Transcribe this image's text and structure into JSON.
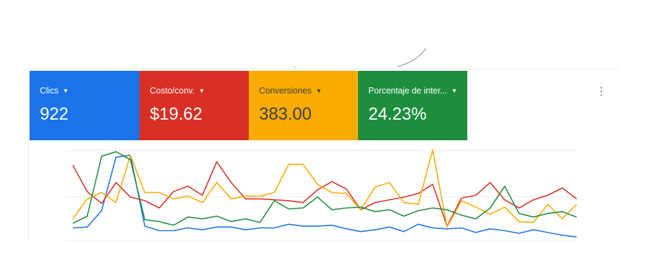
{
  "scorecards": [
    {
      "label": "Clics",
      "value": "922",
      "color": "#1a73e8"
    },
    {
      "label": "Costo/conv.",
      "value": "$19.62",
      "color": "#d93025"
    },
    {
      "label": "Conversiones",
      "value": "383.00",
      "color": "#f9ab00"
    },
    {
      "label": "Porcentaje de inter...",
      "value": "24.23%",
      "color": "#1e8e3e"
    }
  ],
  "icons": {
    "dropdown": "caret-down-icon",
    "more": "more-vert-icon"
  },
  "more_label": "⋮",
  "chart_data": {
    "type": "line",
    "x": [
      1,
      2,
      3,
      4,
      5,
      6,
      7,
      8,
      9,
      10,
      11,
      12,
      13,
      14,
      15,
      16,
      17,
      18,
      19,
      20,
      21,
      22,
      23,
      24,
      25,
      26,
      27,
      28,
      29,
      30,
      31,
      32,
      33,
      34,
      35,
      36
    ],
    "ylim": [
      0,
      100
    ],
    "grid": true,
    "series": [
      {
        "color": "#1a73e8",
        "values": [
          14,
          15,
          33,
          92,
          94,
          16,
          11,
          11,
          14,
          12,
          15,
          15,
          12,
          14,
          14,
          18,
          16,
          16,
          17,
          13,
          10,
          12,
          15,
          10,
          18,
          14,
          13,
          14,
          9,
          13,
          11,
          8,
          12,
          9,
          6,
          4
        ]
      },
      {
        "color": "#d93025",
        "values": [
          83,
          54,
          41,
          64,
          48,
          44,
          36,
          54,
          60,
          50,
          87,
          64,
          46,
          46,
          45,
          44,
          42,
          56,
          65,
          57,
          34,
          42,
          45,
          48,
          52,
          62,
          16,
          47,
          50,
          64,
          45,
          36,
          45,
          50,
          58,
          46
        ]
      },
      {
        "color": "#f9ab00",
        "values": [
          24,
          46,
          53,
          42,
          94,
          53,
          53,
          46,
          49,
          42,
          64,
          46,
          49,
          49,
          53,
          84,
          84,
          62,
          53,
          52,
          34,
          59,
          64,
          42,
          40,
          100,
          15,
          44,
          37,
          29,
          37,
          21,
          20,
          40,
          24,
          40
        ]
      },
      {
        "color": "#1e8e3e",
        "values": [
          19,
          27,
          93,
          98,
          89,
          23,
          21,
          17,
          26,
          24,
          27,
          21,
          24,
          20,
          44,
          35,
          36,
          48,
          34,
          36,
          37,
          32,
          34,
          27,
          33,
          36,
          34,
          28,
          24,
          36,
          60,
          30,
          26,
          30,
          32,
          26
        ]
      }
    ]
  }
}
